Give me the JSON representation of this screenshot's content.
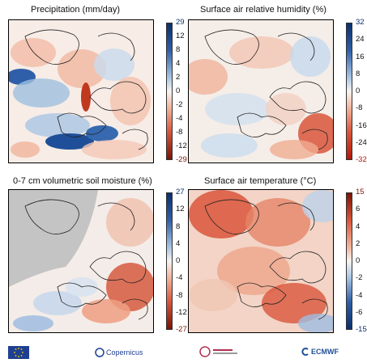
{
  "panels": [
    {
      "title": "Precipitation (mm/day)",
      "ticks": [
        "29",
        "12",
        "8",
        "4",
        "2",
        "0",
        "-2",
        "-4",
        "-8",
        "-12",
        "-29"
      ],
      "colorbar_top": "#0b2f6b",
      "colorbar_bottom": "#7a1406",
      "pattern": "precip"
    },
    {
      "title": "Surface air relative humidity (%)",
      "ticks": [
        "32",
        "24",
        "16",
        "8",
        "0",
        "-8",
        "-16",
        "-24",
        "-32"
      ],
      "colorbar_top": "#0b2f6b",
      "colorbar_bottom": "#b0180a",
      "pattern": "humidity"
    },
    {
      "title": "0-7 cm volumetric soil moisture (%)",
      "ticks": [
        "27",
        "12",
        "8",
        "4",
        "0",
        "-4",
        "-8",
        "-12",
        "-27"
      ],
      "colorbar_top": "#0b2f6b",
      "colorbar_bottom": "#7a1406",
      "pattern": "soil"
    },
    {
      "title": "Surface air temperature (°C)",
      "ticks": [
        "15",
        "6",
        "4",
        "2",
        "0",
        "-2",
        "-4",
        "-6",
        "-15"
      ],
      "colorbar_top": "#7a1406",
      "colorbar_bottom": "#0b2f6b",
      "pattern": "temperature"
    }
  ],
  "logos": {
    "copernicus": "Copernicus",
    "ecmwf": "ECMWF"
  },
  "colors": {
    "red": "#d9553b",
    "light_red": "#f3c2b0",
    "blue": "#3b6fb5",
    "light_blue": "#c8dbee",
    "neutral": "#f6f1ee",
    "grey_land": "#c4c4c4"
  }
}
